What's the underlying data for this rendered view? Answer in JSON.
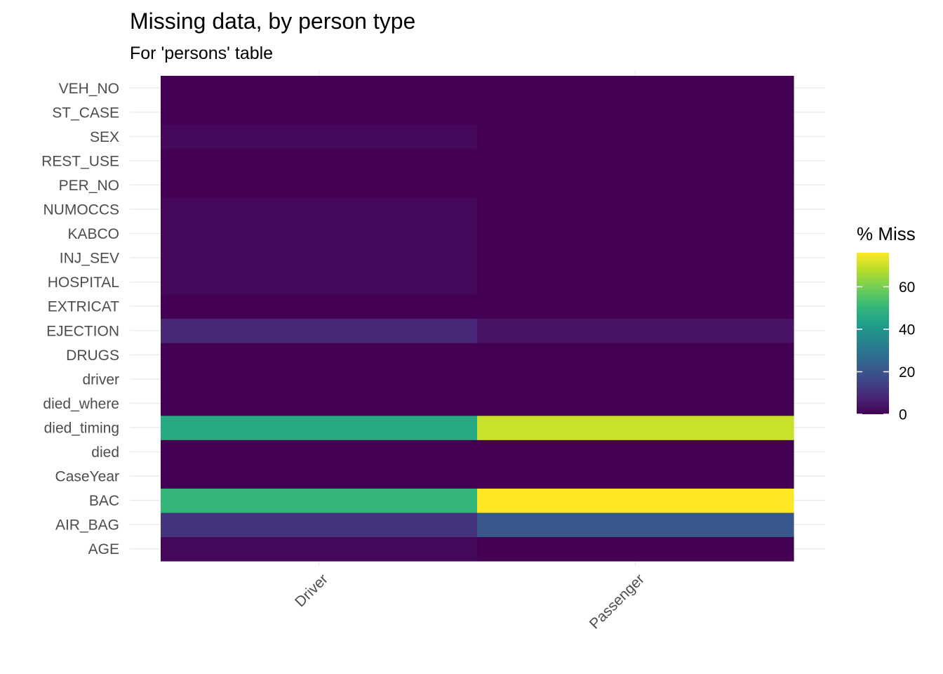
{
  "chart_data": {
    "type": "heatmap",
    "title": "Missing data, by person type",
    "subtitle": "For 'persons' table",
    "xlabel": "",
    "ylabel": "",
    "x_categories": [
      "Driver",
      "Passenger"
    ],
    "y_categories": [
      "AGE",
      "AIR_BAG",
      "BAC",
      "CaseYear",
      "died",
      "died_timing",
      "died_where",
      "driver",
      "DRUGS",
      "EJECTION",
      "EXTRICAT",
      "HOSPITAL",
      "INJ_SEV",
      "KABCO",
      "NUMOCCS",
      "PER_NO",
      "REST_USE",
      "SEX",
      "ST_CASE",
      "VEH_NO"
    ],
    "values": {
      "Driver": [
        1.5,
        11.5,
        50,
        0,
        0,
        46,
        0,
        0,
        0,
        8.5,
        0,
        1.5,
        1.5,
        1.5,
        1.5,
        0,
        0,
        1.5,
        0,
        0
      ],
      "Passenger": [
        0,
        21,
        76,
        0,
        0,
        70,
        0,
        0,
        0,
        4,
        0,
        0,
        0,
        0,
        0,
        0,
        0,
        0,
        0,
        0
      ]
    },
    "color_scale": "viridis",
    "value_range": [
      0,
      76
    ],
    "legend": {
      "title": "% Miss",
      "ticks": [
        0,
        20,
        40,
        60
      ],
      "placement": "right"
    },
    "grid": true
  }
}
